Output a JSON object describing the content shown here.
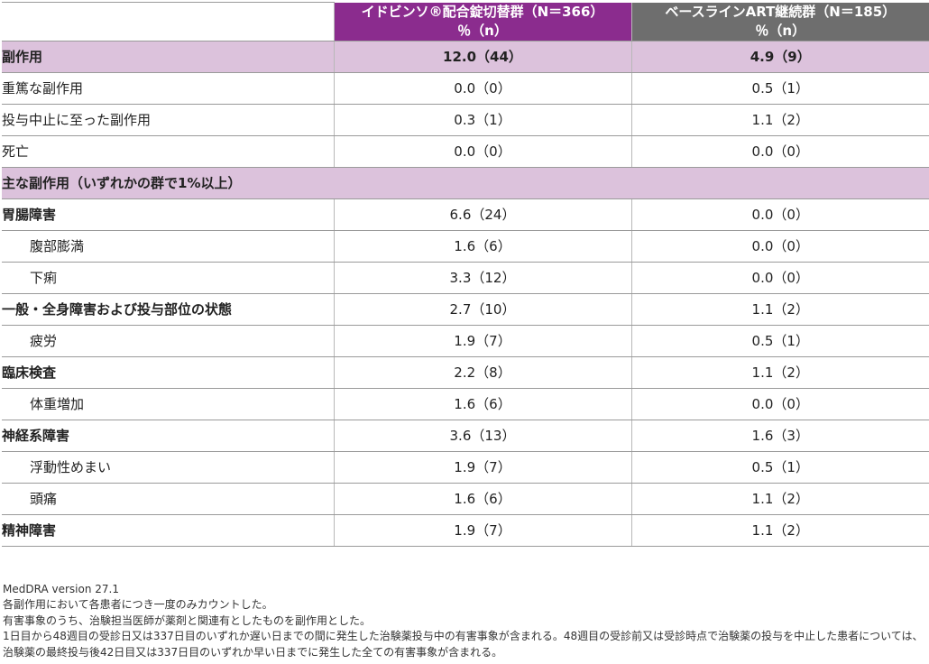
{
  "header": {
    "col2_line1": "イドビンソ®配合錠切替群（N＝366）",
    "col2_line2": "％（n）",
    "col3_line1": "ベースラインART継続群（N＝185）",
    "col3_line2": "％（n）"
  },
  "rows": [
    {
      "label": "副作用",
      "v1": "12.0（44）",
      "v2": "4.9（9）"
    },
    {
      "label": "重篤な副作用",
      "v1": "0.0（0）",
      "v2": "0.5（1）"
    },
    {
      "label": "投与中止に至った副作用",
      "v1": "0.3（1）",
      "v2": "1.1（2）"
    },
    {
      "label": "死亡",
      "v1": "0.0（0）",
      "v2": "0.0（0）"
    },
    {
      "label": "主な副作用（いずれかの群で1%以上）"
    },
    {
      "label": "胃腸障害",
      "v1": "6.6（24）",
      "v2": "0.0（0）"
    },
    {
      "label": "腹部膨満",
      "v1": "1.6（6）",
      "v2": "0.0（0）"
    },
    {
      "label": "下痢",
      "v1": "3.3（12）",
      "v2": "0.0（0）"
    },
    {
      "label": "一般・全身障害および投与部位の状態",
      "v1": "2.7（10）",
      "v2": "1.1（2）"
    },
    {
      "label": "疲労",
      "v1": "1.9（7）",
      "v2": "0.5（1）"
    },
    {
      "label": "臨床検査",
      "v1": "2.2（8）",
      "v2": "1.1（2）"
    },
    {
      "label": "体重増加",
      "v1": "1.6（6）",
      "v2": "0.0（0）"
    },
    {
      "label": "神経系障害",
      "v1": "3.6（13）",
      "v2": "1.6（3）"
    },
    {
      "label": "浮動性めまい",
      "v1": "1.9（7）",
      "v2": "0.5（1）"
    },
    {
      "label": "頭痛",
      "v1": "1.6（6）",
      "v2": "1.1（2）"
    },
    {
      "label": "精神障害",
      "v1": "1.9（7）",
      "v2": "1.1（2）"
    }
  ],
  "notes": [
    "MedDRA version 27.1",
    "各副作用において各患者につき一度のみカウントした。",
    "有害事象のうち、治験担当医師が薬剤と関連有としたものを副作用とした。",
    "1日目から48週目の受診日又は337日目のいずれか遅い日までの間に発生した治験薬投与中の有害事象が含まれる。48週目の受診前又は受診時点で治験薬の投与を中止した患者については、治験薬の最終投与後42日目又は337日目のいずれか早い日までに発生した全ての有害事象が含まれる。"
  ],
  "colors": {
    "group1_header": "#8b2c8e",
    "group2_header": "#6e6e6e",
    "section_row": "#dcc2dc"
  }
}
